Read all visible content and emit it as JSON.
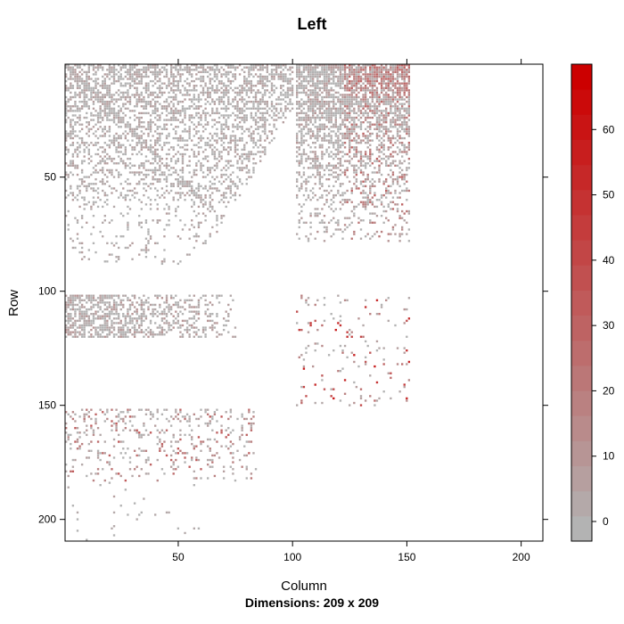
{
  "chart_data": {
    "type": "heatmap",
    "title": "Left",
    "xlabel": "Column",
    "ylabel": "Row",
    "subtitle": "Dimensions: 209 x 209",
    "nrow": 209,
    "ncol": 209,
    "xlim": [
      0.5,
      209.5
    ],
    "ylim": [
      0.5,
      209.5
    ],
    "x_ticks": [
      50,
      100,
      150,
      200
    ],
    "y_ticks": [
      50,
      100,
      150,
      200
    ],
    "x_tick_labels": [
      "50",
      "100",
      "150",
      "200"
    ],
    "y_tick_labels": [
      "50",
      "100",
      "150",
      "200"
    ],
    "colorkey": {
      "range": [
        -3,
        70
      ],
      "ticks": [
        0,
        10,
        20,
        30,
        40,
        50,
        60
      ],
      "tick_labels": [
        "0",
        "10",
        "20",
        "30",
        "40",
        "50",
        "60"
      ],
      "low_color": "#b3b3b3",
      "high_color": "#cc0000",
      "steps": 19
    },
    "blocks": [
      {
        "rows": [
          1,
          88
        ],
        "cols": [
          1,
          100
        ],
        "density": "dense-diagonal",
        "value_range": [
          0,
          8
        ]
      },
      {
        "rows": [
          1,
          78
        ],
        "cols": [
          102,
          122
        ],
        "density": "dense",
        "value_range": [
          0,
          10
        ]
      },
      {
        "rows": [
          1,
          78
        ],
        "cols": [
          123,
          151
        ],
        "density": "dense",
        "value_range": [
          0,
          30
        ]
      },
      {
        "rows": [
          102,
          120
        ],
        "cols": [
          1,
          75
        ],
        "density": "dense",
        "value_range": [
          0,
          12
        ]
      },
      {
        "rows": [
          152,
          183
        ],
        "cols": [
          1,
          84
        ],
        "density": "sparse",
        "value_range": [
          0,
          35
        ]
      },
      {
        "rows": [
          184,
          209
        ],
        "cols": [
          1,
          60
        ],
        "density": "very-sparse",
        "value_range": [
          0,
          5
        ]
      },
      {
        "rows": [
          102,
          150
        ],
        "cols": [
          102,
          151
        ],
        "density": "sparse",
        "value_range": [
          0,
          60
        ]
      }
    ]
  },
  "colors": {
    "low": "#b3b3b3",
    "high": "#cc0000",
    "frame": "#000000"
  }
}
